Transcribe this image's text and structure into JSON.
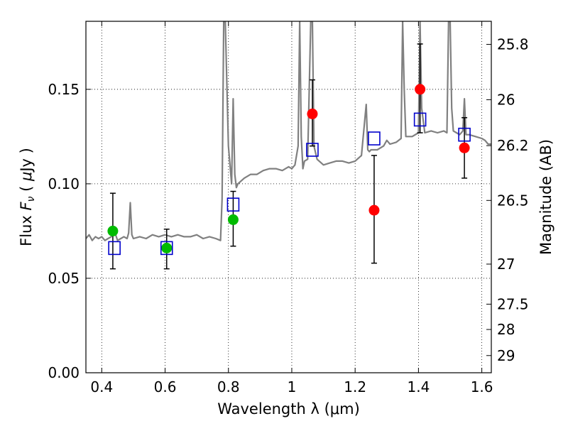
{
  "chart_data": {
    "type": "scatter",
    "xlabel": "Wavelength  λ (μm)",
    "ylabel": "Flux  F_ν  ( μJy )",
    "ylabel_parts": {
      "pre": "Flux  ",
      "var": "F",
      "sub": "ν",
      "mid": "  ( ",
      "mu": "μ",
      "post": "Jy )"
    },
    "y2label": "Magnitude (AB)",
    "xlim": [
      0.35,
      1.63
    ],
    "ylim": [
      0.0,
      0.186
    ],
    "grid": true,
    "x_ticks": [
      0.4,
      0.6,
      0.8,
      1.0,
      1.2,
      1.4,
      1.6
    ],
    "x_tick_labels": [
      "0.4",
      "0.6",
      "0.8",
      "1",
      "1.2",
      "1.4",
      "1.6"
    ],
    "y_ticks": [
      0.0,
      0.05,
      0.1,
      0.15
    ],
    "y_tick_labels": [
      "0.00",
      "0.05",
      "0.10",
      "0.15"
    ],
    "y2_ticks": [
      {
        "label": "25.8",
        "flux": 0.1738
      },
      {
        "label": "26",
        "flux": 0.1445
      },
      {
        "label": "26.2",
        "flux": 0.1202
      },
      {
        "label": "26.5",
        "flux": 0.0912
      },
      {
        "label": "27",
        "flux": 0.0575
      },
      {
        "label": "27.5",
        "flux": 0.0363
      },
      {
        "label": "28",
        "flux": 0.0229
      },
      {
        "label": "29",
        "flux": 0.0091
      }
    ],
    "model_spectrum": {
      "name": "model SED",
      "color": "#808080",
      "x": [
        0.35,
        0.36,
        0.37,
        0.38,
        0.39,
        0.4,
        0.41,
        0.42,
        0.43,
        0.44,
        0.45,
        0.46,
        0.47,
        0.48,
        0.485,
        0.49,
        0.495,
        0.5,
        0.52,
        0.54,
        0.56,
        0.58,
        0.6,
        0.62,
        0.64,
        0.66,
        0.68,
        0.7,
        0.72,
        0.74,
        0.76,
        0.775,
        0.78,
        0.785,
        0.79,
        0.8,
        0.81,
        0.815,
        0.82,
        0.825,
        0.83,
        0.85,
        0.87,
        0.89,
        0.91,
        0.93,
        0.95,
        0.97,
        0.99,
        1.0,
        1.01,
        1.02,
        1.025,
        1.03,
        1.035,
        1.04,
        1.05,
        1.06,
        1.065,
        1.07,
        1.08,
        1.1,
        1.12,
        1.14,
        1.16,
        1.18,
        1.2,
        1.22,
        1.235,
        1.24,
        1.245,
        1.25,
        1.27,
        1.29,
        1.3,
        1.31,
        1.33,
        1.345,
        1.35,
        1.355,
        1.36,
        1.38,
        1.4,
        1.405,
        1.41,
        1.42,
        1.44,
        1.46,
        1.48,
        1.49,
        1.495,
        1.5,
        1.505,
        1.51,
        1.52,
        1.53,
        1.54,
        1.545,
        1.55,
        1.56,
        1.58,
        1.6,
        1.61,
        1.62,
        1.63
      ],
      "y": [
        0.071,
        0.073,
        0.07,
        0.072,
        0.071,
        0.072,
        0.07,
        0.071,
        0.072,
        0.075,
        0.07,
        0.071,
        0.072,
        0.071,
        0.074,
        0.09,
        0.073,
        0.071,
        0.072,
        0.071,
        0.073,
        0.072,
        0.073,
        0.072,
        0.073,
        0.072,
        0.072,
        0.073,
        0.071,
        0.072,
        0.071,
        0.07,
        0.092,
        0.186,
        0.186,
        0.12,
        0.1,
        0.145,
        0.105,
        0.098,
        0.1,
        0.103,
        0.105,
        0.105,
        0.107,
        0.108,
        0.108,
        0.107,
        0.109,
        0.108,
        0.11,
        0.12,
        0.186,
        0.125,
        0.108,
        0.112,
        0.113,
        0.186,
        0.186,
        0.12,
        0.113,
        0.11,
        0.111,
        0.112,
        0.112,
        0.111,
        0.112,
        0.115,
        0.142,
        0.118,
        0.117,
        0.118,
        0.118,
        0.12,
        0.123,
        0.121,
        0.122,
        0.124,
        0.186,
        0.15,
        0.125,
        0.125,
        0.127,
        0.186,
        0.14,
        0.127,
        0.128,
        0.127,
        0.128,
        0.127,
        0.186,
        0.186,
        0.14,
        0.128,
        0.127,
        0.126,
        0.128,
        0.145,
        0.126,
        0.126,
        0.125,
        0.124,
        0.123,
        0.121,
        0.121
      ]
    },
    "series": [
      {
        "name": "green points",
        "color": "#00bb00",
        "x": [
          0.435,
          0.605,
          0.815
        ],
        "y": [
          0.075,
          0.066,
          0.081
        ],
        "err_low": [
          0.02,
          0.011,
          0.014
        ],
        "err_high": [
          0.02,
          0.01,
          0.015
        ]
      },
      {
        "name": "red points",
        "color": "#ff0000",
        "x": [
          1.065,
          1.26,
          1.405,
          1.545
        ],
        "y": [
          0.137,
          0.086,
          0.15,
          0.119
        ],
        "err_low": [
          0.017,
          0.028,
          0.023,
          0.016
        ],
        "err_high": [
          0.018,
          0.029,
          0.024,
          0.016
        ]
      },
      {
        "name": "model photometry",
        "color": "#0000cc",
        "marker": "open-square",
        "x": [
          0.44,
          0.605,
          0.815,
          1.065,
          1.26,
          1.405,
          1.545
        ],
        "y": [
          0.066,
          0.066,
          0.089,
          0.118,
          0.124,
          0.134,
          0.126
        ]
      }
    ]
  }
}
